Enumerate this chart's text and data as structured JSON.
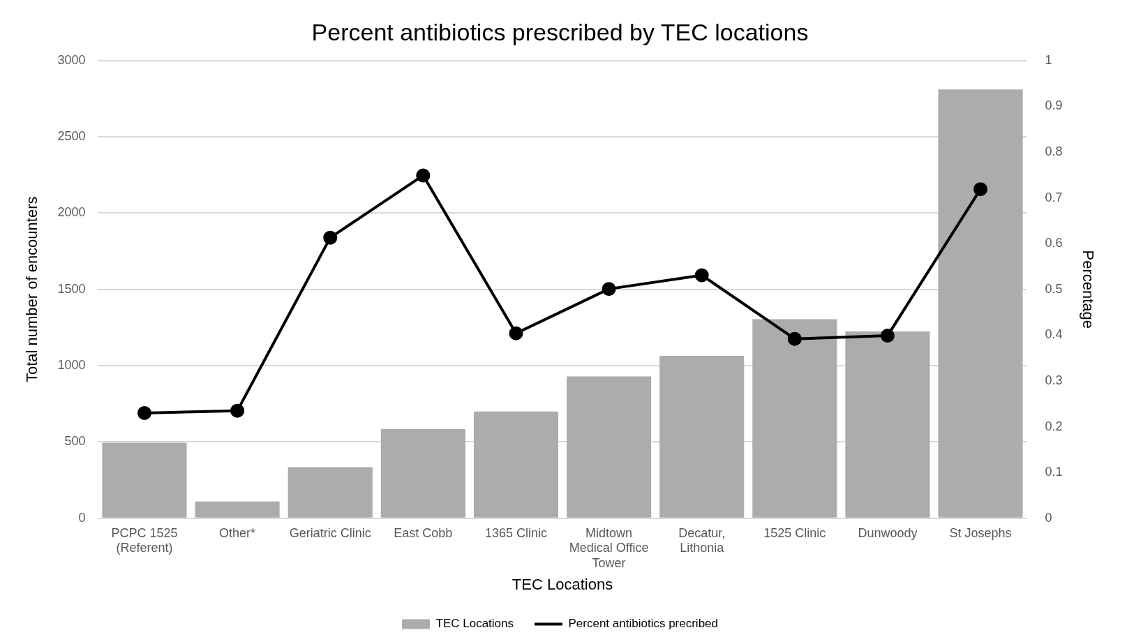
{
  "chart_data": {
    "type": "bar",
    "title": "Percent antibiotics prescribed by TEC locations",
    "xlabel": "TEC Locations",
    "ylabel": "Total number of encounters",
    "y2label": "Percentage",
    "categories": [
      "PCPC 1525 (Referent)",
      "Other*",
      "Geriatric Clinic",
      "East Cobb",
      "1365 Clinic",
      "Midtown Medical Office Tower",
      "Decatur, Lithonia",
      "1525 Clinic",
      "Dunwoody",
      "St Josephs"
    ],
    "series": [
      {
        "name": "TEC Locations",
        "color": "#aeabab",
        "values": [
          495,
          110,
          335,
          585,
          700,
          930,
          1065,
          1305,
          1225,
          2810
        ]
      },
      {
        "name": "Percent antibiotics precribed",
        "type": "line",
        "axis": "y2",
        "color": "#000000",
        "marker": "circle",
        "values": [
          0.23,
          0.235,
          0.613,
          0.749,
          0.404,
          0.501,
          0.531,
          0.392,
          0.399,
          0.719
        ]
      }
    ],
    "ylim": [
      0,
      3000
    ],
    "yticks": [
      0,
      500,
      1000,
      1500,
      2000,
      2500,
      3000
    ],
    "y2lim": [
      0,
      1
    ],
    "y2ticks": [
      0,
      0.1,
      0.2,
      0.3,
      0.4,
      0.5,
      0.6,
      0.7,
      0.8,
      0.9,
      1
    ],
    "grid": "y",
    "legend": "bottom"
  }
}
